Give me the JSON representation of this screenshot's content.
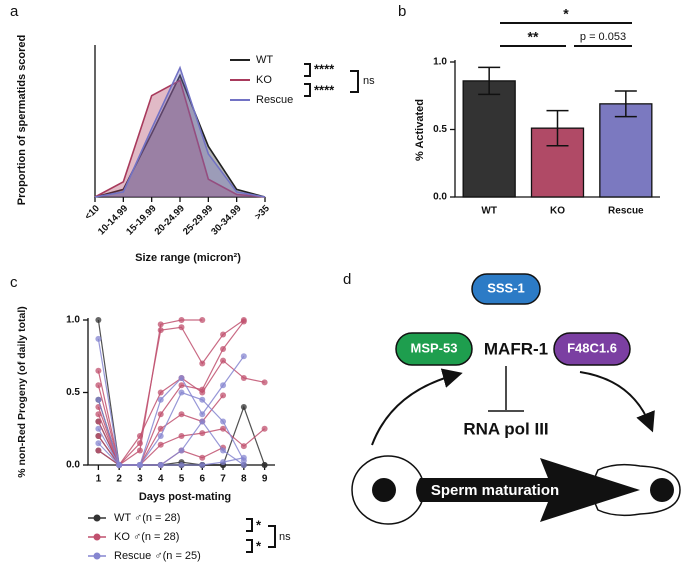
{
  "panels": [
    "a",
    "b",
    "c",
    "d"
  ],
  "chart_data": [
    {
      "type": "area",
      "xlabel": "Size range (micron²)",
      "ylabel": "Proportion of spermatids scored",
      "categories": [
        "<10",
        "10-14.99",
        "15-19.99",
        "20-24.99",
        "25-29.99",
        "30-34.99",
        ">35"
      ],
      "ylim": [
        0,
        0.6
      ],
      "series": [
        {
          "name": "WT",
          "color": "#222222",
          "values": [
            0,
            0.03,
            0.25,
            0.48,
            0.2,
            0.03,
            0
          ]
        },
        {
          "name": "KO",
          "color": "#a83a5c",
          "values": [
            0,
            0.06,
            0.4,
            0.46,
            0.07,
            0.01,
            0
          ]
        },
        {
          "name": "Rescue",
          "color": "#7272c4",
          "values": [
            0,
            0.02,
            0.27,
            0.51,
            0.17,
            0.02,
            0
          ]
        }
      ],
      "annotations": [
        "****",
        "****",
        "ns"
      ]
    },
    {
      "type": "bar",
      "ylabel": "% Activated",
      "categories": [
        "WT",
        "KO",
        "Rescue"
      ],
      "values": [
        0.86,
        0.51,
        0.69
      ],
      "errors": [
        0.1,
        0.13,
        0.095
      ],
      "colors": [
        "#333333",
        "#b04a66",
        "#7b79c0"
      ],
      "ylim": [
        0,
        1
      ],
      "yticks": [
        {
          "value": 0,
          "label": "0.0"
        },
        {
          "value": 0.5,
          "label": "0.5"
        },
        {
          "value": 1,
          "label": "1.0"
        }
      ],
      "annotations": [
        "*",
        "**",
        "p = 0.053"
      ]
    },
    {
      "type": "line",
      "xlabel": "Days post-mating",
      "ylabel": "% non-Red Progeny (of daily total)",
      "x": [
        1,
        2,
        3,
        4,
        5,
        6,
        7,
        8,
        9
      ],
      "xlim": [
        0.5,
        9.5
      ],
      "xticks": [
        1,
        2,
        3,
        4,
        5,
        6,
        7,
        8,
        9
      ],
      "ylim": [
        0,
        1
      ],
      "yticks": [
        {
          "value": 0,
          "label": "0.0"
        },
        {
          "value": 0.5,
          "label": "0.5"
        },
        {
          "value": 1,
          "label": "1.0"
        }
      ],
      "series": [
        {
          "name": "WT ♂(n = 28)",
          "color": "#333333",
          "lines": [
            [
              1.0,
              0,
              0,
              0,
              0,
              0,
              0,
              null,
              null
            ],
            [
              0.45,
              0,
              0,
              0,
              0,
              0,
              0,
              0.4,
              0
            ],
            [
              0.3,
              0,
              0,
              0,
              0,
              0,
              0,
              0,
              0
            ],
            [
              0.2,
              0,
              0,
              0,
              0,
              0,
              0,
              0,
              null
            ],
            [
              0.1,
              0,
              0,
              0,
              0.02,
              0,
              0,
              null,
              null
            ]
          ]
        },
        {
          "name": "KO ♂(n = 28)",
          "color": "#c0506e",
          "lines": [
            [
              0.65,
              0,
              0.1,
              0.97,
              1.0,
              1.0,
              null,
              null,
              null
            ],
            [
              0.55,
              0,
              0.15,
              0.93,
              0.95,
              0.7,
              0.9,
              1.0,
              null
            ],
            [
              0.4,
              0,
              0.2,
              0.5,
              0.6,
              0.5,
              0.72,
              0.6,
              0.57
            ],
            [
              0.35,
              0,
              0,
              0.35,
              0.55,
              0.52,
              0.8,
              0.99,
              null
            ],
            [
              0.3,
              0,
              0,
              0.25,
              0.35,
              0.3,
              0.48,
              null,
              null
            ],
            [
              0.2,
              0,
              0,
              0.14,
              0.2,
              0.22,
              0.25,
              0.13,
              0.25
            ],
            [
              0.1,
              0,
              0,
              0,
              0.1,
              0.05,
              0.12,
              null,
              null
            ]
          ]
        },
        {
          "name": "Rescue ♂(n = 25)",
          "color": "#8585d0",
          "lines": [
            [
              0.87,
              0,
              0,
              0.45,
              0.6,
              0.35,
              0.55,
              0.75,
              null
            ],
            [
              0.45,
              0,
              0,
              0.2,
              0.5,
              0.45,
              0.3,
              0.03,
              null
            ],
            [
              0.25,
              0,
              0,
              0,
              0.1,
              0.3,
              0.1,
              0,
              null
            ],
            [
              0.15,
              0,
              0,
              0,
              0,
              0,
              0.02,
              0.05,
              null
            ]
          ]
        }
      ],
      "annotations": [
        "*",
        "*",
        "ns"
      ]
    }
  ],
  "diagram": {
    "nodes": [
      "SSS-1",
      "MSP-53",
      "MAFR-1",
      "F48C1.6",
      "RNA pol III"
    ],
    "arrow_label": "Sperm maturation"
  }
}
